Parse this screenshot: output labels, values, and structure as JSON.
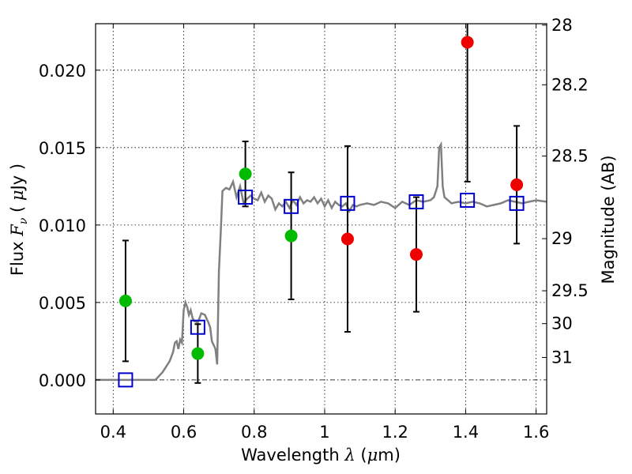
{
  "chart_data": {
    "type": "scatter",
    "xlim": [
      0.35,
      1.63
    ],
    "ylim": [
      -0.0022,
      0.023
    ],
    "grid": true,
    "xlabel": {
      "text": "Wavelength",
      "symbol": "λ",
      "unit_open": "(",
      "unit_mu": "μ",
      "unit_rest": "m)"
    },
    "ylabel": {
      "text": "Flux",
      "symbol": "F",
      "subscript": "ν",
      "unit_open": "(",
      "unit_mu": "μ",
      "unit_rest": "Jy )"
    },
    "ylabel_right": "Magnitude (AB)",
    "x_ticks": [
      {
        "value": 0.4,
        "label": "0.4"
      },
      {
        "value": 0.6,
        "label": "0.6"
      },
      {
        "value": 0.8,
        "label": "0.8"
      },
      {
        "value": 1.0,
        "label": "1"
      },
      {
        "value": 1.2,
        "label": "1.2"
      },
      {
        "value": 1.4,
        "label": "1.4"
      },
      {
        "value": 1.6,
        "label": "1.6"
      }
    ],
    "y_ticks": [
      {
        "value": 0.0,
        "label": "0.000"
      },
      {
        "value": 0.005,
        "label": "0.005"
      },
      {
        "value": 0.01,
        "label": "0.010"
      },
      {
        "value": 0.015,
        "label": "0.015"
      },
      {
        "value": 0.02,
        "label": "0.020"
      }
    ],
    "right_ticks": [
      {
        "value": 28,
        "label": "28"
      },
      {
        "value": 28.2,
        "label": "28.2"
      },
      {
        "value": 28.5,
        "label": "28.5"
      },
      {
        "value": 29,
        "label": "29"
      },
      {
        "value": 29.5,
        "label": "29.5"
      },
      {
        "value": 30,
        "label": "30"
      },
      {
        "value": 31,
        "label": "31"
      }
    ],
    "template_spectrum": {
      "color": "#808080",
      "points": [
        [
          0.35,
          0.0
        ],
        [
          0.52,
          0.0
        ],
        [
          0.54,
          0.0005
        ],
        [
          0.56,
          0.0012
        ],
        [
          0.57,
          0.0018
        ],
        [
          0.575,
          0.0024
        ],
        [
          0.58,
          0.0025
        ],
        [
          0.585,
          0.002
        ],
        [
          0.59,
          0.0026
        ],
        [
          0.595,
          0.0024
        ],
        [
          0.6,
          0.0045
        ],
        [
          0.605,
          0.005
        ],
        [
          0.61,
          0.0047
        ],
        [
          0.615,
          0.0042
        ],
        [
          0.62,
          0.0045
        ],
        [
          0.625,
          0.004
        ],
        [
          0.63,
          0.0038
        ],
        [
          0.64,
          0.0037
        ],
        [
          0.65,
          0.0043
        ],
        [
          0.66,
          0.0042
        ],
        [
          0.67,
          0.0037
        ],
        [
          0.675,
          0.0034
        ],
        [
          0.68,
          0.0025
        ],
        [
          0.69,
          0.002
        ],
        [
          0.695,
          0.001
        ],
        [
          0.7,
          0.007
        ],
        [
          0.705,
          0.0095
        ],
        [
          0.71,
          0.0122
        ],
        [
          0.72,
          0.0124
        ],
        [
          0.73,
          0.0123
        ],
        [
          0.74,
          0.0128
        ],
        [
          0.75,
          0.0118
        ],
        [
          0.76,
          0.0125
        ],
        [
          0.77,
          0.0114
        ],
        [
          0.78,
          0.0117
        ],
        [
          0.79,
          0.0119
        ],
        [
          0.8,
          0.0117
        ],
        [
          0.81,
          0.0116
        ],
        [
          0.82,
          0.0121
        ],
        [
          0.83,
          0.0115
        ],
        [
          0.84,
          0.0119
        ],
        [
          0.85,
          0.0117
        ],
        [
          0.86,
          0.011
        ],
        [
          0.87,
          0.0114
        ],
        [
          0.88,
          0.0112
        ],
        [
          0.89,
          0.0115
        ],
        [
          0.9,
          0.0111
        ],
        [
          0.91,
          0.0116
        ],
        [
          0.92,
          0.0113
        ],
        [
          0.93,
          0.0118
        ],
        [
          0.94,
          0.0114
        ],
        [
          0.95,
          0.0116
        ],
        [
          0.96,
          0.0115
        ],
        [
          0.97,
          0.0118
        ],
        [
          0.98,
          0.0114
        ],
        [
          0.99,
          0.0117
        ],
        [
          1.0,
          0.0112
        ],
        [
          1.01,
          0.0116
        ],
        [
          1.02,
          0.0111
        ],
        [
          1.03,
          0.0115
        ],
        [
          1.04,
          0.0113
        ],
        [
          1.05,
          0.0112
        ],
        [
          1.06,
          0.0114
        ],
        [
          1.07,
          0.0109
        ],
        [
          1.08,
          0.0113
        ],
        [
          1.09,
          0.0112
        ],
        [
          1.1,
          0.0113
        ],
        [
          1.12,
          0.0114
        ],
        [
          1.14,
          0.0113
        ],
        [
          1.16,
          0.0115
        ],
        [
          1.18,
          0.0114
        ],
        [
          1.2,
          0.0111
        ],
        [
          1.22,
          0.0115
        ],
        [
          1.24,
          0.0113
        ],
        [
          1.26,
          0.0116
        ],
        [
          1.28,
          0.0115
        ],
        [
          1.3,
          0.0116
        ],
        [
          1.31,
          0.0118
        ],
        [
          1.32,
          0.0125
        ],
        [
          1.325,
          0.015
        ],
        [
          1.33,
          0.0152
        ],
        [
          1.335,
          0.0125
        ],
        [
          1.34,
          0.0118
        ],
        [
          1.36,
          0.0114
        ],
        [
          1.38,
          0.0115
        ],
        [
          1.4,
          0.0114
        ],
        [
          1.42,
          0.0115
        ],
        [
          1.44,
          0.0114
        ],
        [
          1.46,
          0.0112
        ],
        [
          1.48,
          0.0113
        ],
        [
          1.5,
          0.0114
        ],
        [
          1.52,
          0.0116
        ],
        [
          1.54,
          0.0115
        ],
        [
          1.56,
          0.0114
        ],
        [
          1.58,
          0.0115
        ],
        [
          1.6,
          0.0116
        ],
        [
          1.63,
          0.0115
        ]
      ]
    },
    "series": [
      {
        "marker": "square",
        "color": "#0000cc",
        "points": [
          {
            "x": 0.435,
            "y": 0.0
          },
          {
            "x": 0.64,
            "y": 0.0034
          },
          {
            "x": 0.775,
            "y": 0.0118
          },
          {
            "x": 0.905,
            "y": 0.0112
          },
          {
            "x": 1.065,
            "y": 0.0114
          },
          {
            "x": 1.26,
            "y": 0.0115
          },
          {
            "x": 1.405,
            "y": 0.0116
          },
          {
            "x": 1.545,
            "y": 0.0114
          }
        ]
      },
      {
        "marker": "circle",
        "color": "#00bb00",
        "points": [
          {
            "x": 0.435,
            "y": 0.0051,
            "err": 0.0039
          },
          {
            "x": 0.64,
            "y": 0.0017,
            "err": 0.0019
          },
          {
            "x": 0.775,
            "y": 0.0133,
            "err": 0.0021
          },
          {
            "x": 0.905,
            "y": 0.0093,
            "err": 0.0041
          }
        ]
      },
      {
        "marker": "circle",
        "color": "#ee0000",
        "points": [
          {
            "x": 1.065,
            "y": 0.0091,
            "err": 0.006
          },
          {
            "x": 1.26,
            "y": 0.0081,
            "err": 0.0037
          },
          {
            "x": 1.405,
            "y": 0.0218,
            "err": 0.009
          },
          {
            "x": 1.545,
            "y": 0.0126,
            "err": 0.0038
          }
        ]
      }
    ]
  }
}
